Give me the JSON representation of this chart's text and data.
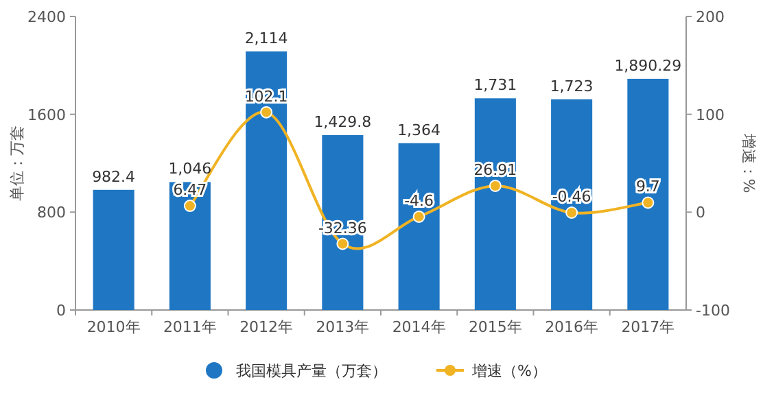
{
  "chart_data": {
    "type": "bar",
    "categories": [
      "2010年",
      "2011年",
      "2012年",
      "2013年",
      "2014年",
      "2015年",
      "2016年",
      "2017年"
    ],
    "series": [
      {
        "name": "我国模具产量（万套）",
        "color": "#1f77c4",
        "values": [
          982.4,
          1046,
          2114,
          1429.8,
          1364,
          1731,
          1723,
          1890.29
        ],
        "value_labels": [
          "982.4",
          "1,046",
          "2,114",
          "1,429.8",
          "1,364",
          "1,731",
          "1,723",
          "1,890.29"
        ]
      },
      {
        "name": "增速（%）",
        "type": "line",
        "axis": "y2",
        "color": "#f0b323",
        "values": [
          null,
          6.47,
          102.1,
          -32.36,
          -4.6,
          26.91,
          -0.46,
          9.7
        ],
        "value_labels": [
          null,
          "6.47",
          "102.1",
          "-32.36",
          "-4.6",
          "26.91",
          "-0.46",
          "9.7"
        ]
      }
    ],
    "ylabel": "单位：万套",
    "y2label": "增速：%",
    "ylim": [
      0,
      2400
    ],
    "yticks": [
      0,
      800,
      1600,
      2400
    ],
    "y2lim": [
      -100,
      200
    ],
    "y2ticks": [
      -100,
      0,
      100,
      200
    ],
    "marker": "circle",
    "legend": "bottom"
  }
}
